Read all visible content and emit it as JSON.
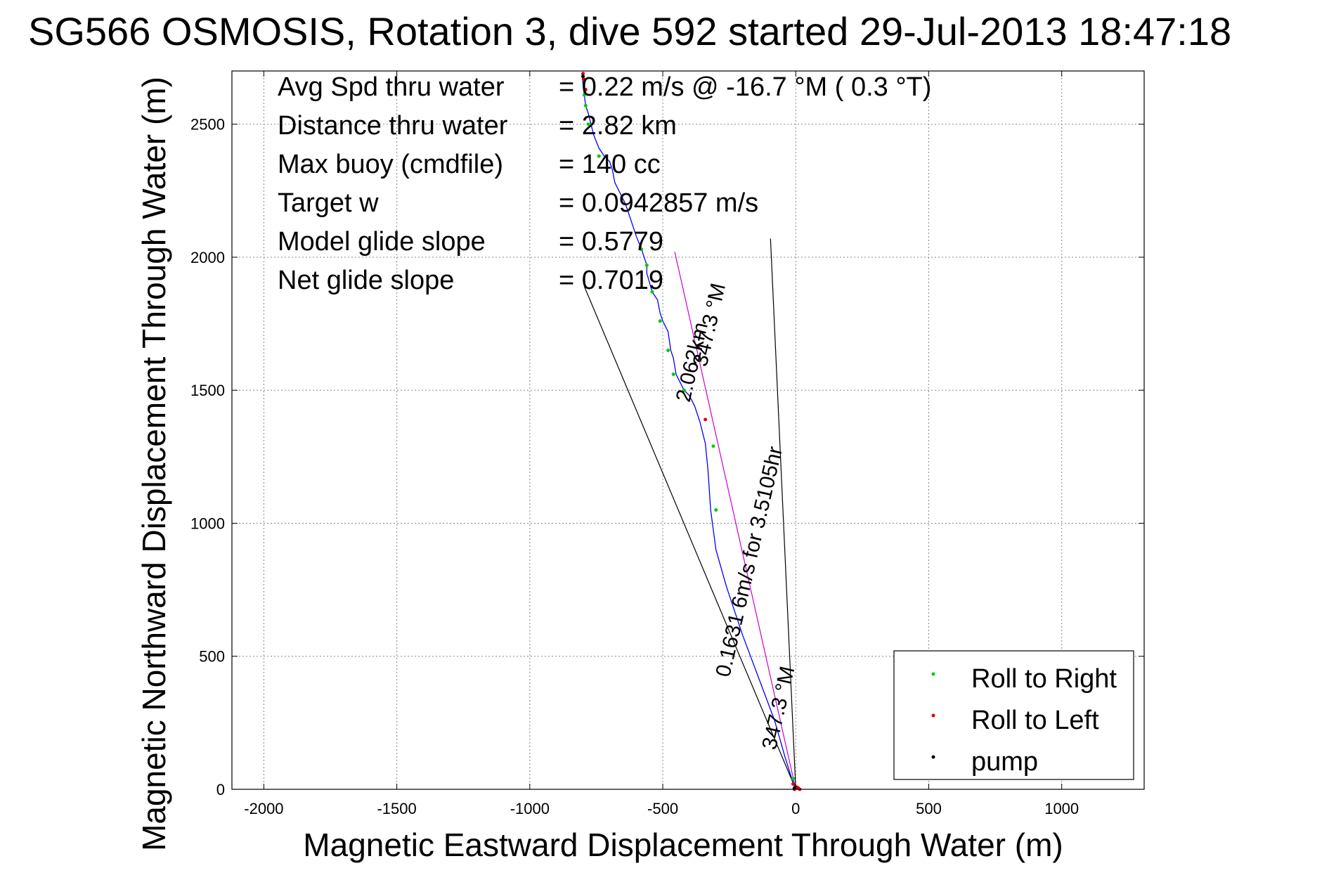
{
  "chart_data": {
    "type": "scatter",
    "title": "SG566 OSMOSIS, Rotation 3, dive 592 started 29-Jul-2013 18:47:18",
    "xlabel": "Magnetic Eastward Displacement Through Water (m)",
    "ylabel": "Magnetic Northward Displacement Through Water (m)",
    "xlim": [
      -2120,
      1310
    ],
    "ylim": [
      0,
      2700
    ],
    "xticks": [
      -2000,
      -1500,
      -1000,
      -500,
      0,
      500,
      1000
    ],
    "yticks": [
      0,
      500,
      1000,
      1500,
      2000,
      2500
    ],
    "grid": true,
    "legend_position": "bottom-right",
    "info": [
      {
        "label": "Avg Spd thru water",
        "value": "= 0.22 m/s @ -16.7 °M (  0.3 °T)"
      },
      {
        "label": "Distance thru water",
        "value": "= 2.82 km"
      },
      {
        "label": "Max buoy (cmdfile)",
        "value": "= 140 cc"
      },
      {
        "label": "Target w",
        "value": "= 0.0942857 m/s"
      },
      {
        "label": "Model glide slope",
        "value": "= 0.5779"
      },
      {
        "label": "Net glide slope",
        "value": "= 0.7019"
      }
    ],
    "annotations": [
      {
        "text": "2.062km",
        "x": -365,
        "y": 1600,
        "rotation": -77
      },
      {
        "text": "347.3 °M",
        "x": -300,
        "y": 1740,
        "rotation": -77
      },
      {
        "text": "0.1631 6m/s for 3.5105hr",
        "x": -150,
        "y": 850,
        "rotation": -77
      },
      {
        "text": "347.3 °M",
        "x": -40,
        "y": 300,
        "rotation": -77
      }
    ],
    "reference_lines": [
      {
        "color": "#000000",
        "points": [
          [
            0,
            0
          ],
          [
            -795,
            1890
          ]
        ]
      },
      {
        "color": "#000000",
        "points": [
          [
            0,
            0
          ],
          [
            -95,
            2070
          ]
        ]
      },
      {
        "color": "#cc00cc",
        "points": [
          [
            0,
            0
          ],
          [
            -455,
            2020
          ]
        ]
      }
    ],
    "track": {
      "color": "#0000ff",
      "points": [
        [
          0,
          0
        ],
        [
          -15,
          40
        ],
        [
          -40,
          120
        ],
        [
          -80,
          260
        ],
        [
          -140,
          420
        ],
        [
          -200,
          580
        ],
        [
          -260,
          760
        ],
        [
          -300,
          900
        ],
        [
          -320,
          1050
        ],
        [
          -330,
          1200
        ],
        [
          -340,
          1300
        ],
        [
          -360,
          1380
        ],
        [
          -380,
          1440
        ],
        [
          -400,
          1480
        ],
        [
          -420,
          1500
        ],
        [
          -450,
          1560
        ],
        [
          -460,
          1620
        ],
        [
          -470,
          1650
        ],
        [
          -480,
          1720
        ],
        [
          -500,
          1760
        ],
        [
          -510,
          1790
        ],
        [
          -520,
          1840
        ],
        [
          -540,
          1870
        ],
        [
          -560,
          1940
        ],
        [
          -560,
          1970
        ],
        [
          -580,
          2030
        ],
        [
          -600,
          2080
        ],
        [
          -620,
          2140
        ],
        [
          -640,
          2200
        ],
        [
          -660,
          2240
        ],
        [
          -680,
          2280
        ],
        [
          -690,
          2330
        ],
        [
          -700,
          2360
        ],
        [
          -720,
          2380
        ],
        [
          -740,
          2410
        ],
        [
          -760,
          2460
        ],
        [
          -770,
          2500
        ],
        [
          -780,
          2540
        ],
        [
          -790,
          2570
        ],
        [
          -795,
          2610
        ],
        [
          -800,
          2650
        ],
        [
          -802,
          2680
        ],
        [
          -795,
          2695
        ]
      ]
    },
    "series": [
      {
        "name": "Roll to Right",
        "color": "#00cc00",
        "marker": "dot",
        "points": [
          [
            -10,
            40
          ],
          [
            -795,
            2610
          ],
          [
            -790,
            2570
          ],
          [
            -780,
            2500
          ],
          [
            -740,
            2380
          ],
          [
            -580,
            2030
          ],
          [
            -560,
            1970
          ],
          [
            -540,
            1870
          ],
          [
            -510,
            1760
          ],
          [
            -480,
            1650
          ],
          [
            -460,
            1560
          ],
          [
            -420,
            1500
          ],
          [
            -310,
            1290
          ],
          [
            -300,
            1050
          ]
        ]
      },
      {
        "name": "Roll to Left",
        "color": "#dd0000",
        "marker": "dot",
        "points": [
          [
            -800,
            2690
          ],
          [
            -798,
            2670
          ],
          [
            -790,
            2630
          ],
          [
            -340,
            1390
          ],
          [
            -10,
            20
          ],
          [
            5,
            8
          ],
          [
            10,
            4
          ],
          [
            15,
            0
          ],
          [
            -5,
            0
          ],
          [
            0,
            5
          ]
        ]
      },
      {
        "name": "pump",
        "color": "#000000",
        "marker": "dot",
        "points": [
          [
            -800,
            2680
          ],
          [
            -5,
            5
          ]
        ]
      }
    ]
  },
  "colors": {
    "track": "#0000ff",
    "roll_right": "#00cc00",
    "roll_left": "#dd0000",
    "pump": "#000000",
    "heading_line": "#cc00cc",
    "grid": "#888888"
  }
}
